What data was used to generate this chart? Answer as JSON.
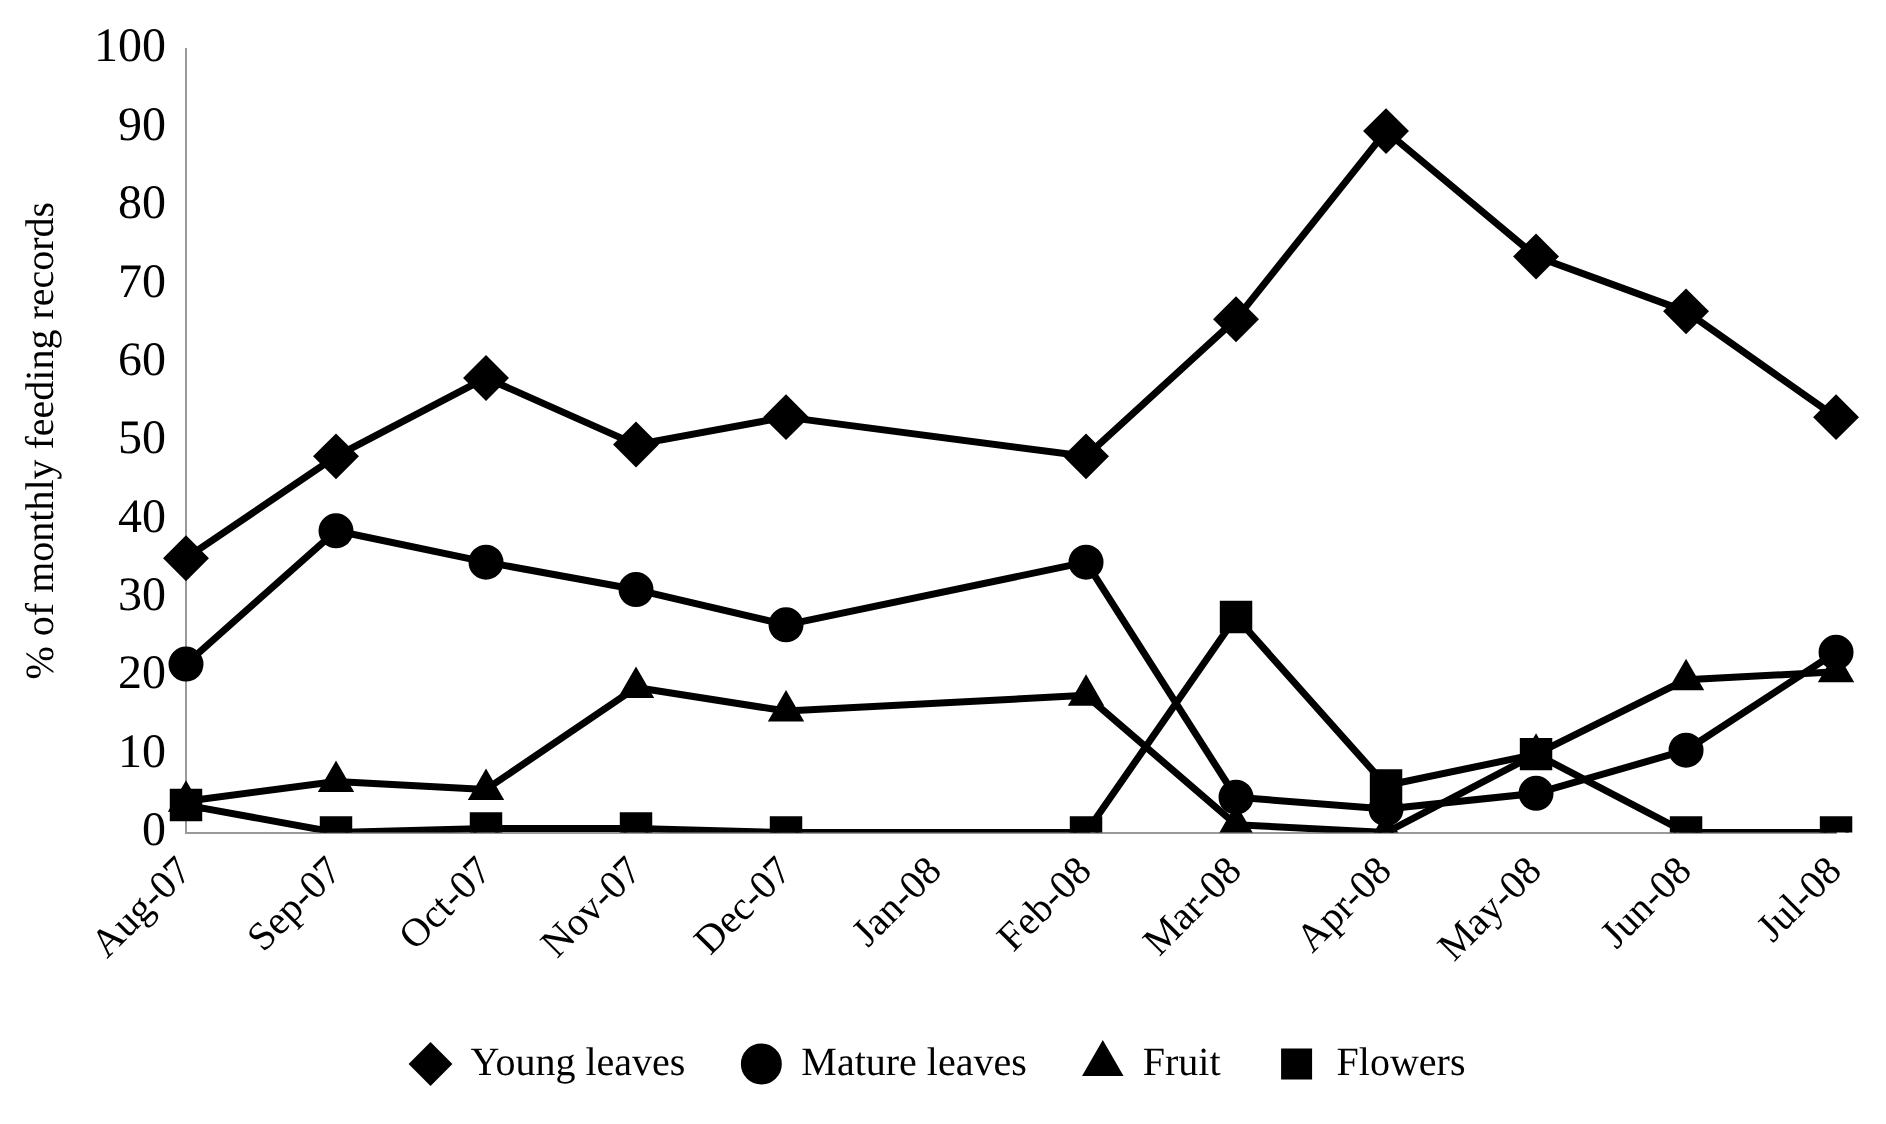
{
  "chart_data": {
    "type": "line",
    "ylabel": "% of monthly feeding records",
    "categories": [
      "Aug-07",
      "Sep-07",
      "Oct-07",
      "Nov-07",
      "Dec-07",
      "Jan-08",
      "Feb-08",
      "Mar-08",
      "Apr-08",
      "May-08",
      "Jun-08",
      "Jul-08"
    ],
    "series": [
      {
        "name": "Young leaves",
        "color": "#000000",
        "marker": "diamond",
        "values": [
          35,
          48,
          58,
          49.5,
          53,
          null,
          48,
          65.5,
          89.5,
          73.5,
          66.5,
          53
        ]
      },
      {
        "name": "Mature leaves",
        "color": "#000000",
        "marker": "circle",
        "values": [
          21.5,
          38.5,
          34.5,
          31,
          26.5,
          null,
          34.5,
          4.5,
          3,
          5,
          10.5,
          23
        ]
      },
      {
        "name": "Fruit",
        "color": "#000000",
        "marker": "triangle",
        "values": [
          4,
          6.5,
          5.5,
          18.5,
          15.5,
          null,
          17.5,
          1,
          0,
          10,
          19.5,
          20.5
        ]
      },
      {
        "name": "Flowers",
        "color": "#000000",
        "marker": "square",
        "values": [
          3.5,
          0,
          0.5,
          0.5,
          0,
          null,
          0,
          27.5,
          6,
          10,
          0,
          0
        ]
      }
    ],
    "ylim": [
      0,
      100
    ],
    "yticks": [
      0,
      10,
      20,
      30,
      40,
      50,
      60,
      70,
      80,
      90,
      100
    ],
    "grid": false,
    "legend": "bottom",
    "line_style": "solid"
  }
}
